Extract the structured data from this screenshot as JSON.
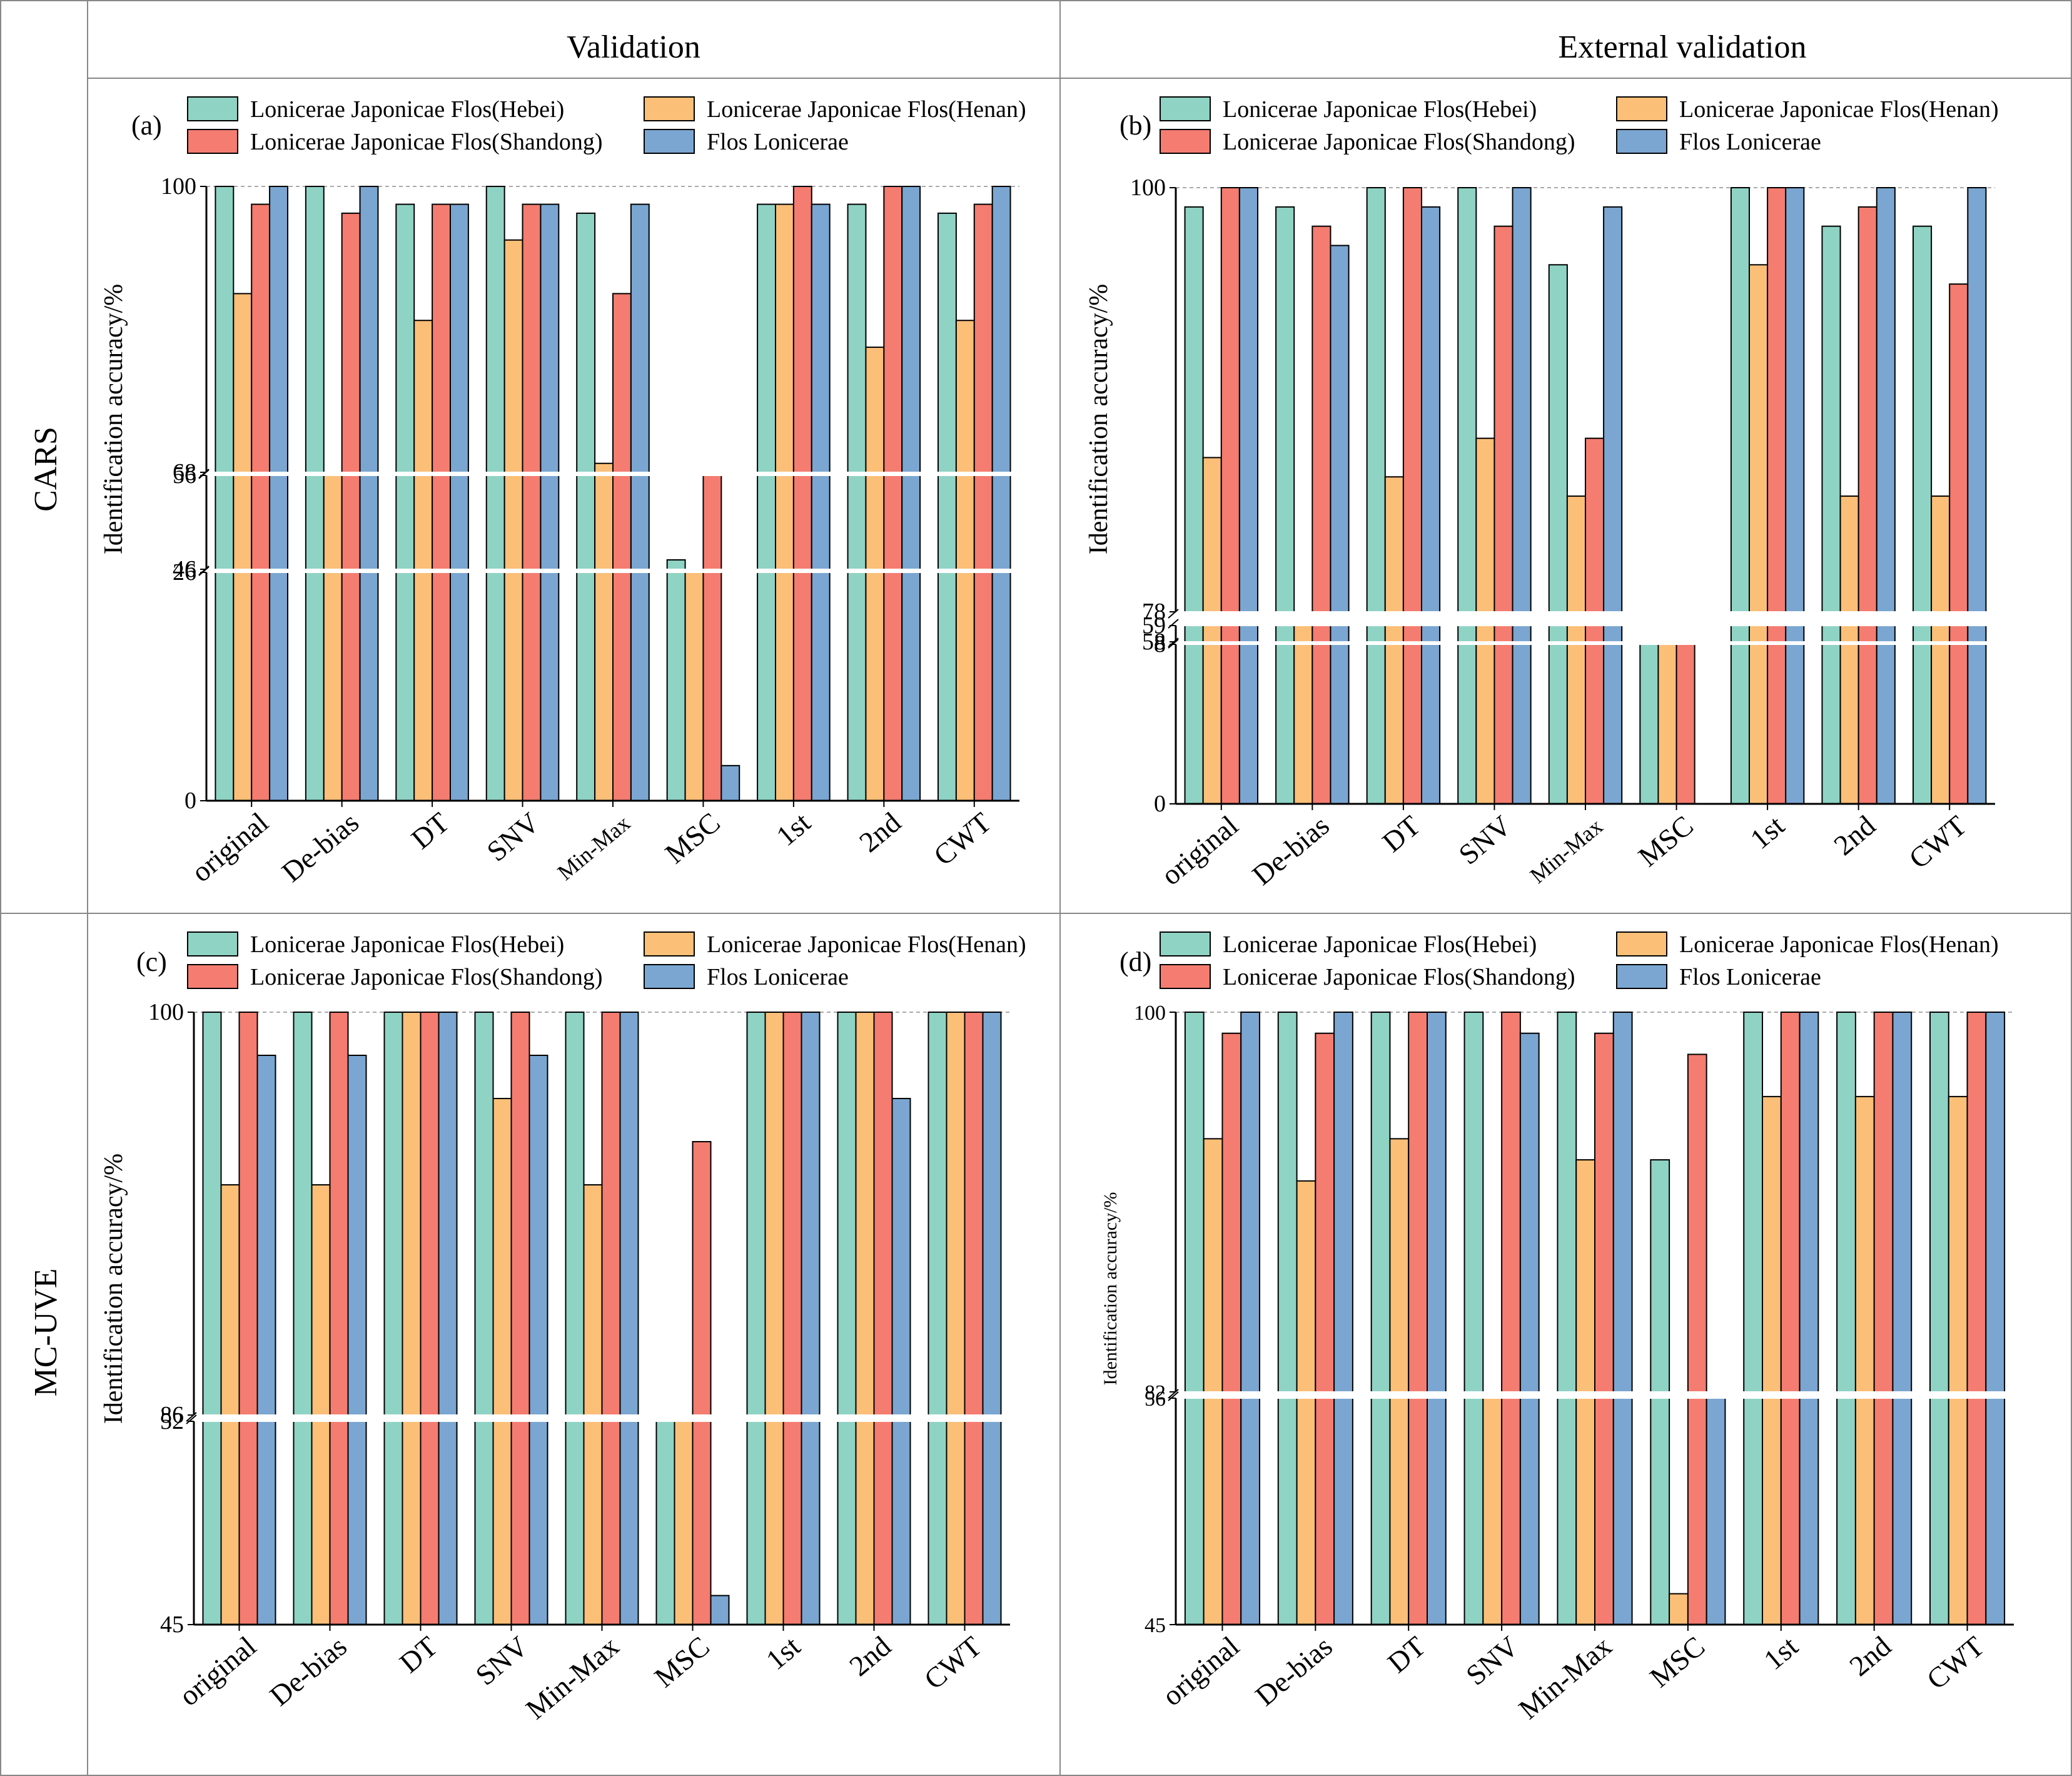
{
  "headers": {
    "columns": [
      "Validation",
      "External validation"
    ],
    "rows": [
      "CARS",
      "MC-UVE"
    ]
  },
  "legend_colors": [
    "#8fd3c5",
    "#fbbf78",
    "#f47c70",
    "#7aa6d1"
  ],
  "chart_data": [
    {
      "type": "bar",
      "panel_label": "(a)",
      "ylabel": "Identification accuracy/%",
      "categories": [
        "original",
        "De-bias",
        "DT",
        "SNV",
        "Min-Max",
        "MSC",
        "1st",
        "2nd",
        "CWT"
      ],
      "series": [
        {
          "name": "Lonicerae Japonicae Flos(Hebei)",
          "values": [
            100,
            100,
            98,
            100,
            97,
            47,
            98,
            98,
            97
          ]
        },
        {
          "name": "Lonicerae Japonicae Flos(Henan)",
          "values": [
            88,
            68,
            85,
            94,
            69,
            26,
            98,
            82,
            85
          ]
        },
        {
          "name": "Lonicerae Japonicae Flos(Shandong)",
          "values": [
            98,
            97,
            98,
            98,
            88,
            56,
            100,
            100,
            98
          ]
        },
        {
          "name": "Flos Lonicerae",
          "values": [
            100,
            100,
            98,
            98,
            98,
            4,
            98,
            100,
            100
          ]
        }
      ],
      "axis_breaks": [
        [
          56,
          68
        ],
        [
          26,
          46
        ]
      ],
      "ticks": [
        0,
        26,
        46,
        56,
        68,
        100
      ],
      "ylim": [
        0,
        100
      ],
      "grid": "dashed line at top"
    },
    {
      "type": "bar",
      "panel_label": "(b)",
      "ylabel": "Identification accuracy/%",
      "categories": [
        "original",
        "De-bias",
        "DT",
        "SNV",
        "Min-Max",
        "MSC",
        "1st",
        "2nd",
        "CWT"
      ],
      "series": [
        {
          "name": "Lonicerae Japonicae Flos(Hebei)",
          "values": [
            99,
            99,
            100,
            100,
            96,
            58,
            100,
            98,
            98
          ]
        },
        {
          "name": "Lonicerae Japonicae Flos(Henan)",
          "values": [
            86,
            78,
            85,
            87,
            84,
            57.5,
            96,
            84,
            84
          ]
        },
        {
          "name": "Lonicerae Japonicae Flos(Shandong)",
          "values": [
            100,
            98,
            100,
            98,
            87,
            58,
            100,
            99,
            95
          ]
        },
        {
          "name": "Flos Lonicerae",
          "values": [
            100,
            97,
            99,
            100,
            99,
            0,
            100,
            100,
            100
          ]
        }
      ],
      "axis_breaks": [
        [
          59,
          78
        ],
        [
          8,
          58
        ]
      ],
      "ticks": [
        0,
        8,
        58,
        59,
        78,
        100
      ],
      "ylim": [
        0,
        100
      ],
      "grid": "dashed line at top"
    },
    {
      "type": "bar",
      "panel_label": "(c)",
      "ylabel": "Identification accuracy/%",
      "categories": [
        "original",
        "De-bias",
        "DT",
        "SNV",
        "Min-Max",
        "MSC",
        "1st",
        "2nd",
        "CWT"
      ],
      "series": [
        {
          "name": "Lonicerae Japonicae Flos(Hebei)",
          "values": [
            100,
            100,
            100,
            100,
            100,
            53,
            100,
            100,
            100
          ]
        },
        {
          "name": "Lonicerae Japonicae Flos(Henan)",
          "values": [
            94,
            94,
            100,
            97,
            94,
            52,
            100,
            100,
            100
          ]
        },
        {
          "name": "Lonicerae Japonicae Flos(Shandong)",
          "values": [
            100,
            100,
            100,
            100,
            100,
            95.5,
            100,
            100,
            100
          ]
        },
        {
          "name": "Flos Lonicerae",
          "values": [
            98.5,
            98.5,
            100,
            98.5,
            100,
            46,
            100,
            97,
            100
          ]
        }
      ],
      "axis_breaks": [
        [
          52,
          86
        ]
      ],
      "ticks": [
        45,
        52,
        86,
        100
      ],
      "ylim": [
        45,
        100
      ],
      "grid": "dashed line at top"
    },
    {
      "type": "bar",
      "panel_label": "(d)",
      "ylabel": "Identification accuracy/%",
      "categories": [
        "original",
        "De-bias",
        "DT",
        "SNV",
        "Min-Max",
        "MSC",
        "1st",
        "2nd",
        "CWT"
      ],
      "series": [
        {
          "name": "Lonicerae Japonicae Flos(Hebei)",
          "values": [
            100,
            100,
            100,
            100,
            100,
            93,
            100,
            100,
            100
          ]
        },
        {
          "name": "Lonicerae Japonicae Flos(Henan)",
          "values": [
            94,
            92,
            94,
            82,
            93,
            46.5,
            96,
            96,
            96
          ]
        },
        {
          "name": "Lonicerae Japonicae Flos(Shandong)",
          "values": [
            99,
            99,
            100,
            100,
            99,
            98,
            100,
            100,
            100
          ]
        },
        {
          "name": "Flos Lonicerae",
          "values": [
            100,
            100,
            100,
            99,
            100,
            56,
            100,
            100,
            100
          ]
        }
      ],
      "axis_breaks": [
        [
          56,
          82
        ]
      ],
      "ticks": [
        45,
        56,
        82,
        100
      ],
      "ylim": [
        45,
        100
      ],
      "grid": "dashed line at top"
    }
  ]
}
